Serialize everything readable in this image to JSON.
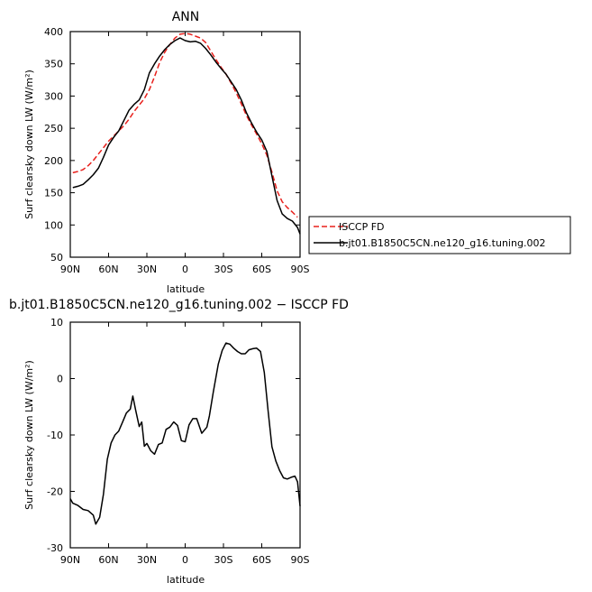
{
  "chart_data": [
    {
      "type": "line",
      "title": "ANN",
      "xlabel": "latitude",
      "ylabel": "Surf clearsky down LW (W/m²)",
      "xlim": [
        90,
        -90
      ],
      "ylim": [
        50,
        400
      ],
      "x_ticks": [
        90,
        60,
        30,
        0,
        -30,
        -60,
        -90
      ],
      "x_tick_labels": [
        "90N",
        "60N",
        "30N",
        "0",
        "30S",
        "60S",
        "90S"
      ],
      "y_ticks": [
        50,
        100,
        150,
        200,
        250,
        300,
        350,
        400
      ],
      "legend_position": "right",
      "series": [
        {
          "name": "ISCCP FD",
          "color": "#e8201c",
          "dash": "dashed",
          "points": [
            [
              88,
              181
            ],
            [
              84,
              183
            ],
            [
              80,
              186
            ],
            [
              76,
              192
            ],
            [
              72,
              200
            ],
            [
              68,
              210
            ],
            [
              64,
              220
            ],
            [
              60,
              230
            ],
            [
              56,
              238
            ],
            [
              52,
              246
            ],
            [
              48,
              254
            ],
            [
              44,
              264
            ],
            [
              40,
              276
            ],
            [
              36,
              286
            ],
            [
              32,
              296
            ],
            [
              28,
              310
            ],
            [
              24,
              330
            ],
            [
              20,
              352
            ],
            [
              16,
              368
            ],
            [
              12,
              380
            ],
            [
              8,
              390
            ],
            [
              4,
              396
            ],
            [
              0,
              397
            ],
            [
              -4,
              396
            ],
            [
              -8,
              393
            ],
            [
              -12,
              390
            ],
            [
              -16,
              383
            ],
            [
              -20,
              370
            ],
            [
              -24,
              357
            ],
            [
              -28,
              345
            ],
            [
              -32,
              334
            ],
            [
              -36,
              320
            ],
            [
              -40,
              305
            ],
            [
              -44,
              288
            ],
            [
              -48,
              270
            ],
            [
              -52,
              255
            ],
            [
              -56,
              241
            ],
            [
              -60,
              226
            ],
            [
              -64,
              208
            ],
            [
              -68,
              182
            ],
            [
              -72,
              153
            ],
            [
              -76,
              136
            ],
            [
              -80,
              127
            ],
            [
              -84,
              120
            ],
            [
              -88,
              112
            ]
          ]
        },
        {
          "name": "b.jt01.B1850C5CN.ne120_g16.tuning.002",
          "color": "#000000",
          "dash": "solid",
          "points": [
            [
              88,
              158
            ],
            [
              84,
              160
            ],
            [
              80,
              163
            ],
            [
              76,
              170
            ],
            [
              72,
              178
            ],
            [
              68,
              188
            ],
            [
              64,
              205
            ],
            [
              60,
              224
            ],
            [
              56,
              236
            ],
            [
              52,
              246
            ],
            [
              48,
              262
            ],
            [
              44,
              278
            ],
            [
              40,
              287
            ],
            [
              36,
              294
            ],
            [
              32,
              310
            ],
            [
              28,
              336
            ],
            [
              24,
              350
            ],
            [
              20,
              362
            ],
            [
              16,
              372
            ],
            [
              12,
              380
            ],
            [
              8,
              386
            ],
            [
              4,
              390
            ],
            [
              0,
              386
            ],
            [
              -4,
              384
            ],
            [
              -8,
              385
            ],
            [
              -12,
              382
            ],
            [
              -16,
              374
            ],
            [
              -20,
              364
            ],
            [
              -24,
              353
            ],
            [
              -28,
              343
            ],
            [
              -32,
              334
            ],
            [
              -36,
              322
            ],
            [
              -40,
              310
            ],
            [
              -44,
              294
            ],
            [
              -48,
              274
            ],
            [
              -52,
              258
            ],
            [
              -56,
              244
            ],
            [
              -60,
              232
            ],
            [
              -64,
              214
            ],
            [
              -68,
              176
            ],
            [
              -72,
              138
            ],
            [
              -76,
              117
            ],
            [
              -80,
              110
            ],
            [
              -84,
              106
            ],
            [
              -88,
              96
            ],
            [
              -90,
              86
            ]
          ]
        }
      ]
    },
    {
      "type": "line",
      "title": "b.jt01.B1850C5CN.ne120_g16.tuning.002 − ISCCP FD",
      "xlabel": "latitude",
      "ylabel": "Surf clearsky down LW (W/m²)",
      "xlim": [
        90,
        -90
      ],
      "ylim": [
        -30,
        10
      ],
      "x_ticks": [
        90,
        60,
        30,
        0,
        -30,
        -60,
        -90
      ],
      "x_tick_labels": [
        "90N",
        "60N",
        "30N",
        "0",
        "30S",
        "60S",
        "90S"
      ],
      "y_ticks": [
        -30,
        -20,
        -10,
        0,
        10
      ],
      "series": [
        {
          "color": "#000000",
          "dash": "solid",
          "points": [
            [
              90,
              -21.3
            ],
            [
              88,
              -22.1
            ],
            [
              84,
              -22.5
            ],
            [
              80,
              -23.2
            ],
            [
              76,
              -23.4
            ],
            [
              72,
              -24.2
            ],
            [
              70,
              -25.8
            ],
            [
              67,
              -24.6
            ],
            [
              64,
              -20.5
            ],
            [
              61,
              -14.3
            ],
            [
              58,
              -11.4
            ],
            [
              55,
              -10.0
            ],
            [
              52,
              -9.3
            ],
            [
              49,
              -7.7
            ],
            [
              46,
              -6.1
            ],
            [
              43,
              -5.4
            ],
            [
              41,
              -3.1
            ],
            [
              39,
              -5.4
            ],
            [
              36,
              -8.5
            ],
            [
              34,
              -7.7
            ],
            [
              32,
              -12.0
            ],
            [
              30,
              -11.5
            ],
            [
              27,
              -12.8
            ],
            [
              24,
              -13.4
            ],
            [
              21,
              -11.7
            ],
            [
              18,
              -11.4
            ],
            [
              15,
              -9.0
            ],
            [
              12,
              -8.6
            ],
            [
              9,
              -7.7
            ],
            [
              6,
              -8.3
            ],
            [
              3,
              -11.0
            ],
            [
              0,
              -11.2
            ],
            [
              -3,
              -8.2
            ],
            [
              -6,
              -7.1
            ],
            [
              -9,
              -7.1
            ],
            [
              -13,
              -9.7
            ],
            [
              -17,
              -8.6
            ],
            [
              -19,
              -6.6
            ],
            [
              -22,
              -2.4
            ],
            [
              -26,
              2.6
            ],
            [
              -29,
              5.0
            ],
            [
              -32,
              6.3
            ],
            [
              -35,
              6.1
            ],
            [
              -38,
              5.4
            ],
            [
              -41,
              4.8
            ],
            [
              -44,
              4.4
            ],
            [
              -47,
              4.4
            ],
            [
              -50,
              5.1
            ],
            [
              -53,
              5.3
            ],
            [
              -56,
              5.4
            ],
            [
              -59,
              4.8
            ],
            [
              -62,
              1.1
            ],
            [
              -65,
              -5.8
            ],
            [
              -68,
              -12.1
            ],
            [
              -71,
              -14.6
            ],
            [
              -74,
              -16.3
            ],
            [
              -77,
              -17.6
            ],
            [
              -80,
              -17.8
            ],
            [
              -83,
              -17.5
            ],
            [
              -86,
              -17.3
            ],
            [
              -88,
              -18.3
            ],
            [
              -90,
              -22.6
            ]
          ]
        }
      ]
    }
  ]
}
